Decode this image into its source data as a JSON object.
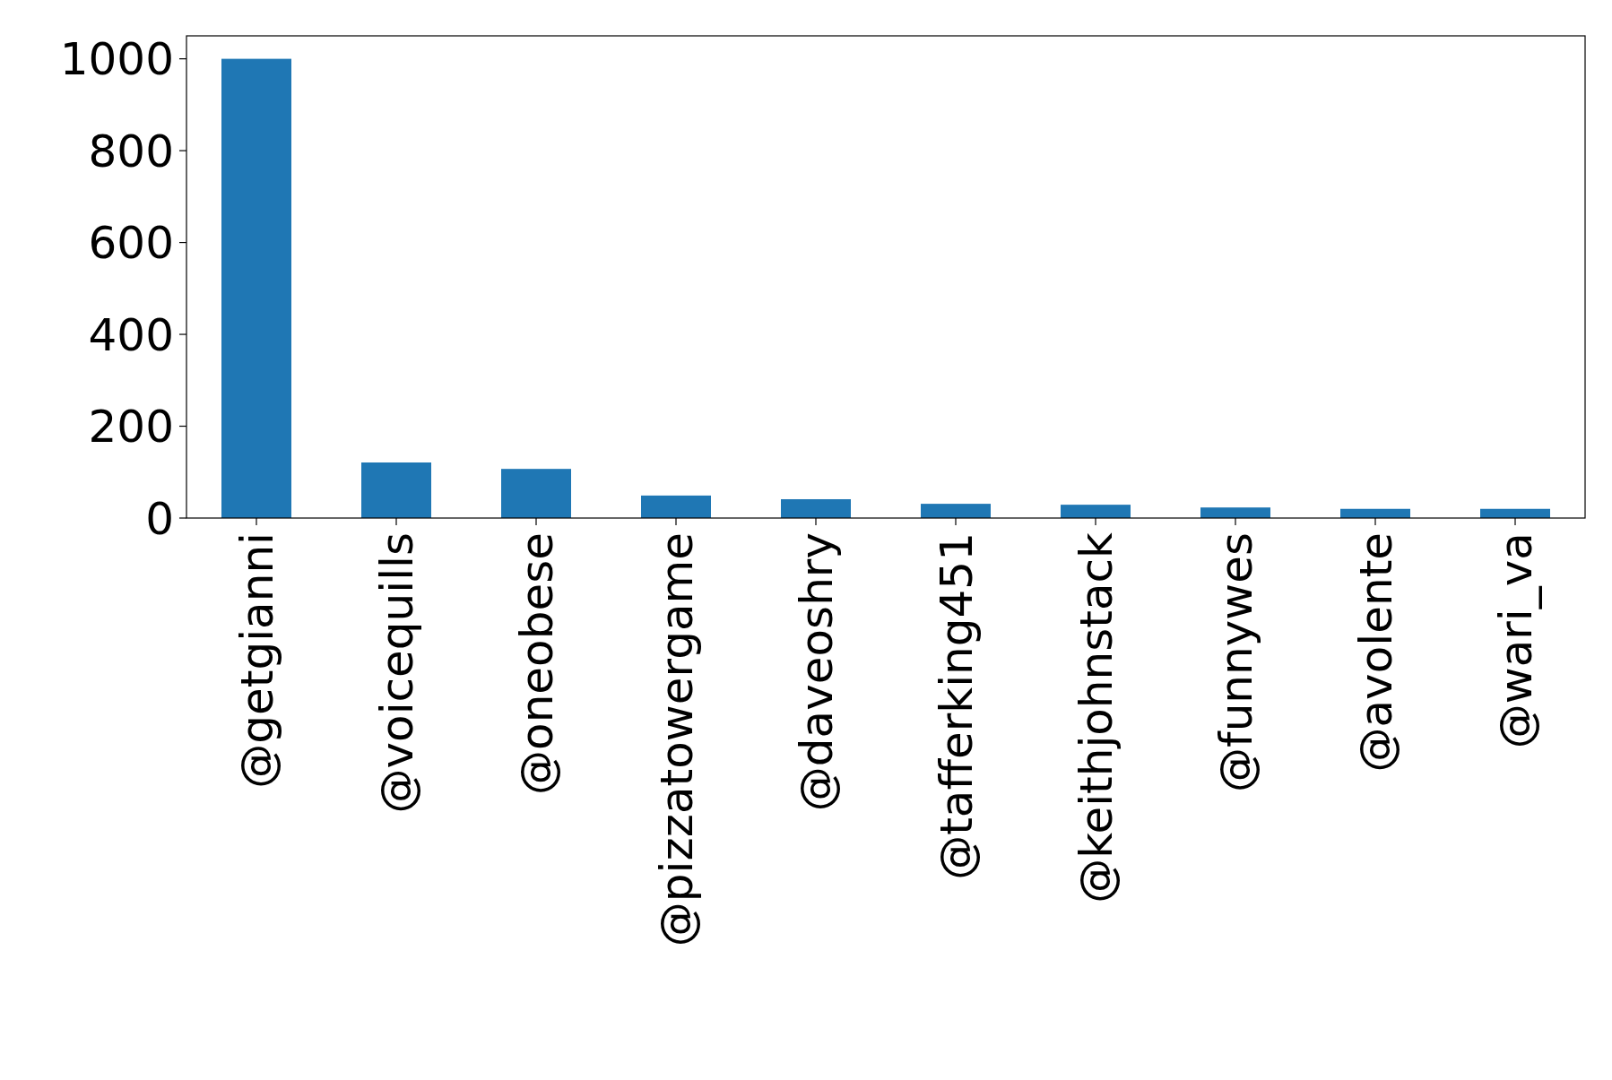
{
  "chart_data": {
    "type": "bar",
    "categories": [
      "@getgianni",
      "@voicequills",
      "@oneobese",
      "@pizzatowergame",
      "@daveoshry",
      "@tafferking451",
      "@keithjohnstack",
      "@funnywes",
      "@avolente",
      "@wari_va"
    ],
    "values": [
      1000,
      121,
      107,
      49,
      41,
      31,
      29,
      23,
      20,
      20
    ],
    "color": "#1f77b4",
    "ylim": [
      0,
      1050
    ],
    "yticks": [
      0,
      200,
      400,
      600,
      800,
      1000
    ],
    "grid": false
  }
}
